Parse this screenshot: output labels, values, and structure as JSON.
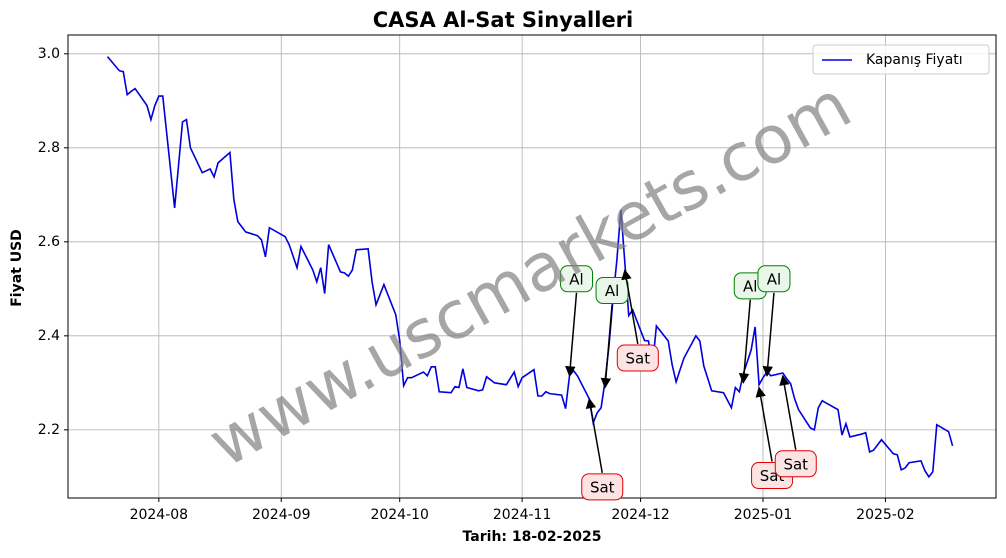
{
  "chart_data": {
    "type": "line",
    "title": "CASA Al-Sat Sinyalleri",
    "xlabel": "Tarih: 18-02-2025",
    "ylabel": "Fiyat USD",
    "watermark": "www.uscmarkets.com",
    "legend": "upper right",
    "grid": true,
    "xlim": [
      "2024-07-09",
      "2025-03-01"
    ],
    "xticks": [
      {
        "value": "2024-08-01",
        "label": "2024-08"
      },
      {
        "value": "2024-09-01",
        "label": "2024-09"
      },
      {
        "value": "2024-10-01",
        "label": "2024-10"
      },
      {
        "value": "2024-11-01",
        "label": "2024-11"
      },
      {
        "value": "2024-12-01",
        "label": "2024-12"
      },
      {
        "value": "2025-01-01",
        "label": "2025-01"
      },
      {
        "value": "2025-02-01",
        "label": "2025-02"
      }
    ],
    "ylim": [
      2.055,
      3.04
    ],
    "yticks": [
      2.2,
      2.4,
      2.6,
      2.8,
      {
        "value": 3,
        "label": "3.0"
      }
    ],
    "x": [
      "2024-07-19",
      "2024-07-22",
      "2024-07-23",
      "2024-07-24",
      "2024-07-25",
      "2024-07-26",
      "2024-07-29",
      "2024-07-30",
      "2024-07-31",
      "2024-08-01",
      "2024-08-02",
      "2024-08-05",
      "2024-08-07",
      "2024-08-08",
      "2024-08-09",
      "2024-08-12",
      "2024-08-14",
      "2024-08-15",
      "2024-08-16",
      "2024-08-19",
      "2024-08-20",
      "2024-08-21",
      "2024-08-23",
      "2024-08-26",
      "2024-08-27",
      "2024-08-28",
      "2024-08-29",
      "2024-09-02",
      "2024-09-03",
      "2024-09-05",
      "2024-09-06",
      "2024-09-09",
      "2024-09-10",
      "2024-09-11",
      "2024-09-12",
      "2024-09-13",
      "2024-09-16",
      "2024-09-17",
      "2024-09-18",
      "2024-09-19",
      "2024-09-20",
      "2024-09-23",
      "2024-09-24",
      "2024-09-25",
      "2024-09-27",
      "2024-09-30",
      "2024-10-01",
      "2024-10-02",
      "2024-10-03",
      "2024-10-04",
      "2024-10-07",
      "2024-10-08",
      "2024-10-09",
      "2024-10-10",
      "2024-10-11",
      "2024-10-14",
      "2024-10-15",
      "2024-10-16",
      "2024-10-17",
      "2024-10-18",
      "2024-10-21",
      "2024-10-22",
      "2024-10-23",
      "2024-10-25",
      "2024-10-28",
      "2024-10-30",
      "2024-10-31",
      "2024-11-01",
      "2024-11-04",
      "2024-11-05",
      "2024-11-06",
      "2024-11-07",
      "2024-11-08",
      "2024-11-11",
      "2024-11-12",
      "2024-11-13",
      "2024-11-14",
      "2024-11-15",
      "2024-11-18",
      "2024-11-19",
      "2024-11-20",
      "2024-11-21",
      "2024-11-22",
      "2024-11-23",
      "2024-11-24",
      "2024-11-25",
      "2024-11-26",
      "2024-11-27",
      "2024-11-28",
      "2024-11-29",
      "2024-12-02",
      "2024-12-03",
      "2024-12-04",
      "2024-12-05",
      "2024-12-08",
      "2024-12-09",
      "2024-12-10",
      "2024-12-11",
      "2024-12-12",
      "2024-12-15",
      "2024-12-16",
      "2024-12-17",
      "2024-12-19",
      "2024-12-22",
      "2024-12-24",
      "2024-12-25",
      "2024-12-26",
      "2024-12-27",
      "2024-12-29",
      "2024-12-30",
      "2024-12-31",
      "2025-01-01",
      "2025-01-02",
      "2025-01-03",
      "2025-01-06",
      "2025-01-07",
      "2025-01-08",
      "2025-01-09",
      "2025-01-10",
      "2025-01-13",
      "2025-01-14",
      "2025-01-15",
      "2025-01-16",
      "2025-01-17",
      "2025-01-20",
      "2025-01-21",
      "2025-01-22",
      "2025-01-23",
      "2025-01-26",
      "2025-01-27",
      "2025-01-28",
      "2025-01-29",
      "2025-01-31",
      "2025-02-03",
      "2025-02-04",
      "2025-02-05",
      "2025-02-06",
      "2025-02-07",
      "2025-02-10",
      "2025-02-11",
      "2025-02-12",
      "2025-02-13",
      "2025-02-14",
      "2025-02-17",
      "2025-02-18"
    ],
    "series": [
      {
        "name": "Kapanış Fiyatı",
        "color": "#0000dd",
        "values": [
          2.994,
          2.964,
          2.962,
          2.913,
          2.92,
          2.926,
          2.89,
          2.86,
          2.89,
          2.91,
          2.91,
          2.672,
          2.855,
          2.86,
          2.8,
          2.747,
          2.755,
          2.738,
          2.768,
          2.79,
          2.69,
          2.643,
          2.621,
          2.613,
          2.604,
          2.568,
          2.63,
          2.611,
          2.594,
          2.545,
          2.59,
          2.54,
          2.515,
          2.545,
          2.49,
          2.594,
          2.536,
          2.534,
          2.527,
          2.54,
          2.583,
          2.585,
          2.515,
          2.466,
          2.509,
          2.445,
          2.39,
          2.294,
          2.311,
          2.311,
          2.323,
          2.315,
          2.334,
          2.334,
          2.281,
          2.279,
          2.292,
          2.29,
          2.33,
          2.29,
          2.283,
          2.285,
          2.313,
          2.3,
          2.296,
          2.323,
          2.292,
          2.311,
          2.328,
          2.272,
          2.272,
          2.281,
          2.277,
          2.274,
          2.245,
          2.315,
          2.326,
          2.315,
          2.266,
          2.215,
          2.236,
          2.247,
          2.304,
          2.379,
          2.477,
          2.562,
          2.668,
          2.557,
          2.443,
          2.455,
          2.39,
          2.389,
          2.334,
          2.421,
          2.389,
          2.338,
          2.302,
          2.328,
          2.353,
          2.4,
          2.389,
          2.336,
          2.283,
          2.279,
          2.247,
          2.29,
          2.281,
          2.319,
          2.37,
          2.419,
          2.296,
          2.311,
          2.323,
          2.315,
          2.321,
          2.309,
          2.298,
          2.266,
          2.243,
          2.204,
          2.2,
          2.247,
          2.262,
          2.257,
          2.243,
          2.189,
          2.213,
          2.185,
          2.191,
          2.194,
          2.153,
          2.157,
          2.179,
          2.149,
          2.147,
          2.115,
          2.119,
          2.13,
          2.134,
          2.113,
          2.1,
          2.111,
          2.211,
          2.196,
          2.166
        ]
      }
    ],
    "annotations": [
      {
        "text": "Al",
        "x": "2024-11-13",
        "y": 2.315,
        "color": "green",
        "position": "above"
      },
      {
        "text": "Sat",
        "x": "2024-11-18",
        "y": 2.266,
        "color": "red",
        "position": "below"
      },
      {
        "text": "Al",
        "x": "2024-11-22",
        "y": 2.29,
        "color": "green",
        "position": "above"
      },
      {
        "text": "Sat",
        "x": "2024-11-27",
        "y": 2.54,
        "color": "red",
        "position": "below"
      },
      {
        "text": "Al",
        "x": "2024-12-27",
        "y": 2.3,
        "color": "green",
        "position": "above"
      },
      {
        "text": "Sat",
        "x": "2024-12-31",
        "y": 2.29,
        "color": "red",
        "position": "below"
      },
      {
        "text": "Al",
        "x": "2025-01-02",
        "y": 2.315,
        "color": "green",
        "position": "above"
      },
      {
        "text": "Sat",
        "x": "2025-01-06",
        "y": 2.315,
        "color": "red",
        "position": "below"
      }
    ]
  }
}
